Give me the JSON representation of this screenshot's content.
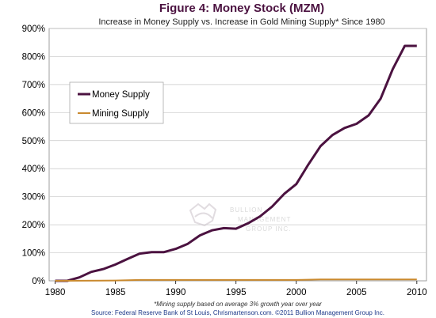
{
  "chart_data": {
    "type": "line",
    "title": "Figure 4: Money Stock (MZM)",
    "subtitle": "Increase in Money Supply vs. Increase in Gold Mining Supply* Since 1980",
    "xlabel": "",
    "ylabel": "",
    "xlim": [
      1979.5,
      2010.8
    ],
    "ylim": [
      0,
      900
    ],
    "x_ticks": [
      1980,
      1985,
      1990,
      1995,
      2000,
      2005,
      2010
    ],
    "y_ticks": [
      0,
      100,
      200,
      300,
      400,
      500,
      600,
      700,
      800,
      900
    ],
    "y_tick_labels": [
      "0%",
      "100%",
      "200%",
      "300%",
      "400%",
      "500%",
      "600%",
      "700%",
      "800%",
      "900%"
    ],
    "grid": true,
    "legend_position": "upper-left",
    "series": [
      {
        "name": "Money Supply",
        "color": "#4b1240",
        "points": [
          [
            1980,
            0
          ],
          [
            1981,
            0
          ],
          [
            1982,
            12
          ],
          [
            1983,
            32
          ],
          [
            1984,
            42
          ],
          [
            1985,
            58
          ],
          [
            1986,
            78
          ],
          [
            1987,
            97
          ],
          [
            1988,
            102
          ],
          [
            1989,
            102
          ],
          [
            1990,
            114
          ],
          [
            1991,
            132
          ],
          [
            1992,
            162
          ],
          [
            1993,
            180
          ],
          [
            1994,
            188
          ],
          [
            1995,
            186
          ],
          [
            1996,
            205
          ],
          [
            1997,
            230
          ],
          [
            1998,
            265
          ],
          [
            1999,
            310
          ],
          [
            2000,
            345
          ],
          [
            2001,
            415
          ],
          [
            2002,
            480
          ],
          [
            2003,
            520
          ],
          [
            2004,
            545
          ],
          [
            2005,
            560
          ],
          [
            2006,
            590
          ],
          [
            2007,
            650
          ],
          [
            2008,
            755
          ],
          [
            2009,
            838
          ],
          [
            2010,
            838
          ]
        ]
      },
      {
        "name": "Mining Supply",
        "color": "#c9892e",
        "points": [
          [
            1980,
            0
          ],
          [
            1985,
            1
          ],
          [
            1987,
            3
          ],
          [
            1990,
            3
          ],
          [
            1995,
            3
          ],
          [
            2000,
            3
          ],
          [
            2002,
            5
          ],
          [
            2005,
            5
          ],
          [
            2010,
            5
          ]
        ]
      }
    ],
    "annotations": [
      "*Mining supply based on average 3% growth year over year",
      "Source: Federal Reserve Bank of St Louis, Chrismartenson.com. ©2011 Bullion Management Group Inc."
    ]
  },
  "colors": {
    "title": "#4b1240",
    "grid": "#c8c8c8",
    "axis": "#000000",
    "source_text": "#1f3a8a"
  },
  "watermark": {
    "icon": "bullion-management-logo-icon",
    "text_lines": [
      "BULLION",
      "MANAGEMENT",
      "GROUP INC."
    ]
  }
}
